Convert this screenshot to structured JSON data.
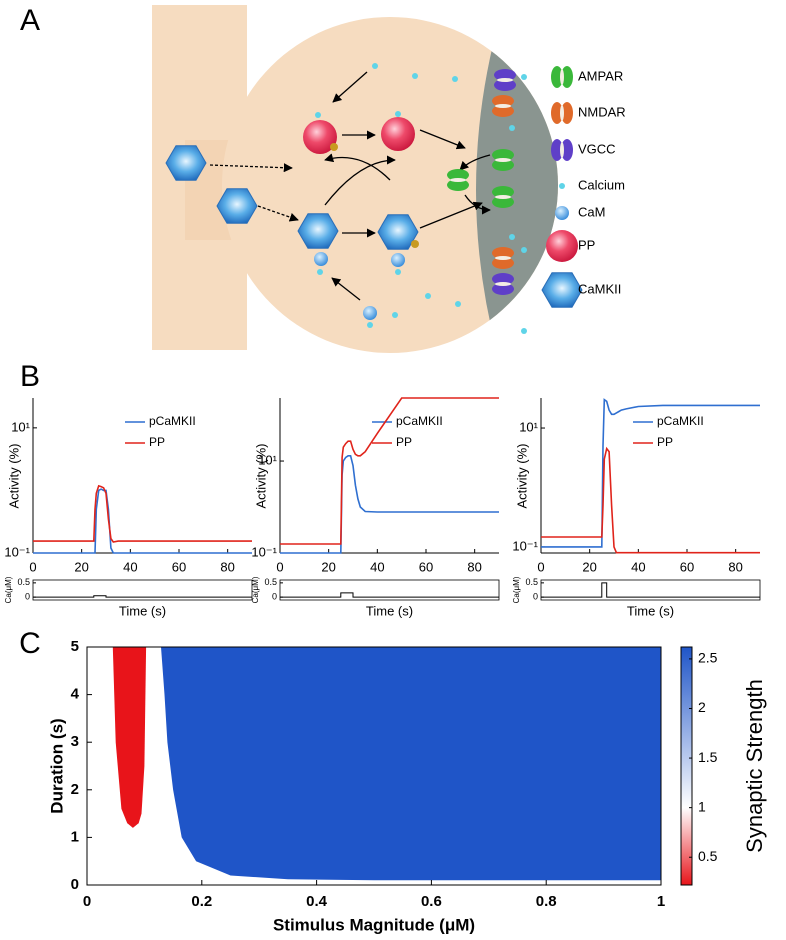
{
  "panels": [
    "A",
    "B",
    "C"
  ],
  "diagram": {
    "legend": [
      "AMPAR",
      "NMDAR",
      "VGCC",
      "Calcium",
      "CaM",
      "PP",
      "CaMKII"
    ]
  },
  "chart_data": [
    {
      "type": "line",
      "yscale": "log",
      "xlim": [
        0,
        90
      ],
      "ylim": [
        0.1,
        30
      ],
      "xticks": [
        0,
        20,
        40,
        60,
        80
      ],
      "yticks": [
        {
          "value": 0.1,
          "label": "10⁻¹"
        },
        {
          "value": 10,
          "label": "10¹"
        }
      ],
      "xlabel": "Time (s)",
      "ylabel": "Activity (%)",
      "legend": "upper right",
      "x": [
        0,
        25,
        25.5,
        26,
        27,
        28,
        29,
        30,
        31,
        32,
        33,
        35,
        40,
        50,
        60,
        70,
        80,
        90
      ],
      "series": [
        {
          "name": "pCaMKII",
          "color": "#2f6fd0",
          "values": [
            0.1,
            0.1,
            0.1,
            0.5,
            1.0,
            1.05,
            1.0,
            1.0,
            0.5,
            0.12,
            0.1,
            0.1,
            0.1,
            0.1,
            0.1,
            0.1,
            0.1,
            0.1
          ]
        },
        {
          "name": "PP",
          "color": "#e0241b",
          "values": [
            0.155,
            0.155,
            0.5,
            0.9,
            1.18,
            1.15,
            1.1,
            0.9,
            0.35,
            0.17,
            0.15,
            0.155,
            0.155,
            0.155,
            0.155,
            0.155,
            0.155,
            0.155
          ]
        }
      ],
      "ca": {
        "ylabel": "Ca(μM)",
        "ylim": [
          -0.1,
          0.6
        ],
        "yticks": [
          0,
          0.5
        ],
        "x": [
          0,
          25,
          25,
          30,
          30,
          90
        ],
        "values": [
          0,
          0,
          0.05,
          0.05,
          0,
          0
        ]
      }
    },
    {
      "type": "line",
      "yscale": "log",
      "xlim": [
        0,
        90
      ],
      "ylim": [
        0.1,
        235
      ],
      "xticks": [
        0,
        20,
        40,
        60,
        80
      ],
      "yticks": [
        {
          "value": 0.1,
          "label": "10⁻¹"
        },
        {
          "value": 10,
          "label": "10¹"
        }
      ],
      "xlabel": "Time (s)",
      "ylabel": "Activity (%)",
      "legend": "upper right",
      "x": [
        0,
        25,
        25.5,
        26,
        27,
        28,
        29,
        30,
        31,
        32,
        33,
        35,
        40,
        50,
        60,
        70,
        80,
        90
      ],
      "series": [
        {
          "name": "pCaMKII",
          "color": "#2f6fd0",
          "values": [
            0.1,
            0.1,
            5,
            10,
            12,
            13,
            13,
            8,
            3,
            1.5,
            1,
            0.8,
            0.78,
            0.78,
            0.78,
            0.78,
            0.78,
            0.78
          ]
        },
        {
          "name": "PP",
          "color": "#e0241b",
          "values": [
            0.157,
            0.157,
            12,
            20,
            24,
            27,
            27,
            18,
            14,
            13,
            13,
            16,
            40,
            235,
            235,
            235,
            235,
            235
          ]
        }
      ],
      "ca": {
        "ylabel": "Ca(μM)",
        "ylim": [
          -0.1,
          0.6
        ],
        "yticks": [
          0,
          0.5
        ],
        "x": [
          0,
          25,
          25,
          30,
          30,
          90
        ],
        "values": [
          0,
          0,
          0.15,
          0.15,
          0,
          0
        ]
      }
    },
    {
      "type": "line",
      "yscale": "log",
      "xlim": [
        0,
        90
      ],
      "ylim": [
        0.079,
        32
      ],
      "xticks": [
        0,
        20,
        40,
        60,
        80
      ],
      "yticks": [
        {
          "value": 0.1,
          "label": "10⁻¹"
        },
        {
          "value": 10,
          "label": "10¹"
        }
      ],
      "xlabel": "Time (s)",
      "ylabel": "Activity (%)",
      "legend": "upper right",
      "x": [
        0,
        25,
        25.5,
        26,
        27,
        28,
        29,
        30,
        31,
        32,
        33,
        35,
        40,
        50,
        60,
        70,
        80,
        90
      ],
      "series": [
        {
          "name": "pCaMKII",
          "color": "#2f6fd0",
          "values": [
            0.1,
            0.1,
            5,
            30,
            28,
            20,
            17,
            17,
            18,
            19,
            20,
            21,
            23,
            24,
            24,
            24,
            24,
            24
          ]
        },
        {
          "name": "PP",
          "color": "#e0241b",
          "values": [
            0.147,
            0.147,
            0.5,
            3,
            4.5,
            4,
            0.5,
            0.1,
            0.08,
            0.08,
            0.08,
            0.08,
            0.08,
            0.08,
            0.08,
            0.08,
            0.08,
            0.08
          ]
        }
      ],
      "ca": {
        "ylabel": "Ca(μM)",
        "ylim": [
          -0.1,
          0.6
        ],
        "yticks": [
          0,
          0.5
        ],
        "x": [
          0,
          25,
          25,
          27,
          27,
          90
        ],
        "values": [
          0,
          0,
          0.5,
          0.5,
          0,
          0
        ]
      }
    },
    {
      "type": "heatmap",
      "xlim": [
        0,
        1
      ],
      "ylim": [
        0,
        5
      ],
      "xticks": [
        0,
        0.2,
        0.4,
        0.6,
        0.8,
        1
      ],
      "yticks": [
        0,
        1,
        2,
        3,
        4,
        5
      ],
      "xlabel": "Stimulus Magnitude (μM)",
      "ylabel": "Duration (s)",
      "colorbar": {
        "label": "Synaptic Strength",
        "ticks": [
          0.5,
          1,
          1.5,
          2,
          2.5
        ],
        "colormap": [
          {
            "value": 0.22,
            "color": "#e8141a"
          },
          {
            "value": 1,
            "color": "#ffffff"
          },
          {
            "value": 2.62,
            "color": "#1f55c8"
          }
        ]
      },
      "regions": [
        {
          "color": "#e8141a",
          "x": [
            0.045,
            0.05,
            0.06,
            0.07,
            0.08,
            0.09,
            0.095,
            0.1,
            0.103
          ],
          "y": [
            5,
            3,
            1.6,
            1.3,
            1.2,
            1.3,
            1.5,
            2.5,
            5
          ]
        },
        {
          "color": "#1f55c8",
          "x": [
            0.129,
            0.135,
            0.14,
            0.15,
            0.165,
            0.19,
            0.25,
            0.35,
            0.5,
            1,
            1
          ],
          "y": [
            5,
            4,
            3,
            2,
            1,
            0.5,
            0.2,
            0.12,
            0.1,
            0.1,
            5
          ]
        }
      ]
    }
  ]
}
